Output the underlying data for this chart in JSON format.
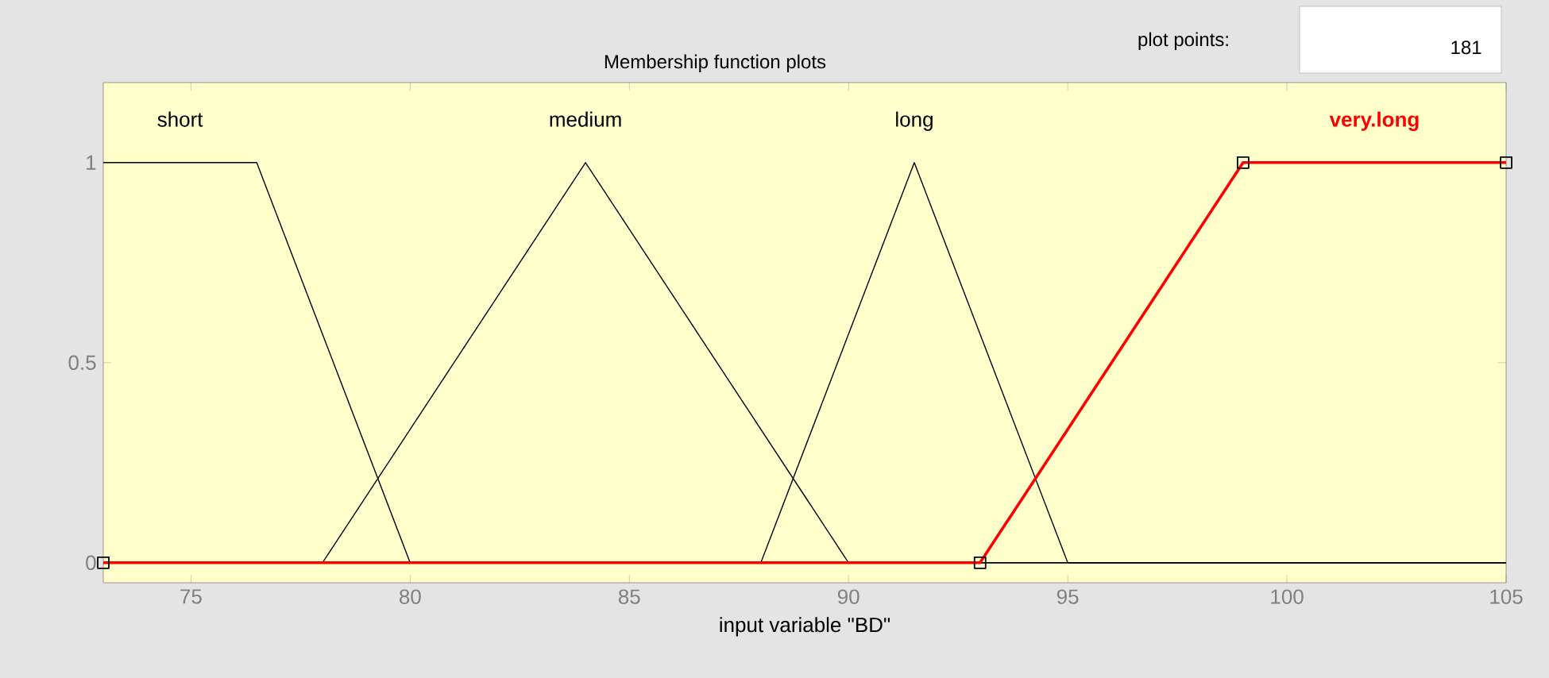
{
  "chart_data": {
    "type": "line",
    "title": "Membership function plots",
    "xlabel": "input variable \"BD\"",
    "xlim": [
      73,
      105
    ],
    "ylim": [
      -0.05,
      1.2
    ],
    "xticks": [
      75,
      80,
      85,
      90,
      95,
      100,
      105
    ],
    "yticks": [
      0,
      0.5,
      1
    ],
    "annotations": [
      "plot points:",
      "181"
    ],
    "series": [
      {
        "name": "short",
        "color": "#000000",
        "x": [
          73,
          76.5,
          80,
          105
        ],
        "values": [
          1,
          1,
          0,
          0
        ]
      },
      {
        "name": "medium",
        "color": "#000000",
        "x": [
          73,
          78,
          84,
          90,
          105
        ],
        "values": [
          0,
          0,
          1,
          0,
          0
        ]
      },
      {
        "name": "long",
        "color": "#000000",
        "x": [
          73,
          88,
          91.5,
          95,
          105
        ],
        "values": [
          0,
          0,
          1,
          0,
          0
        ]
      },
      {
        "name": "very.long",
        "color": "#ff0000",
        "marker": "square",
        "x": [
          73,
          93,
          99,
          105
        ],
        "values": [
          0,
          0,
          1,
          1
        ]
      }
    ]
  }
}
